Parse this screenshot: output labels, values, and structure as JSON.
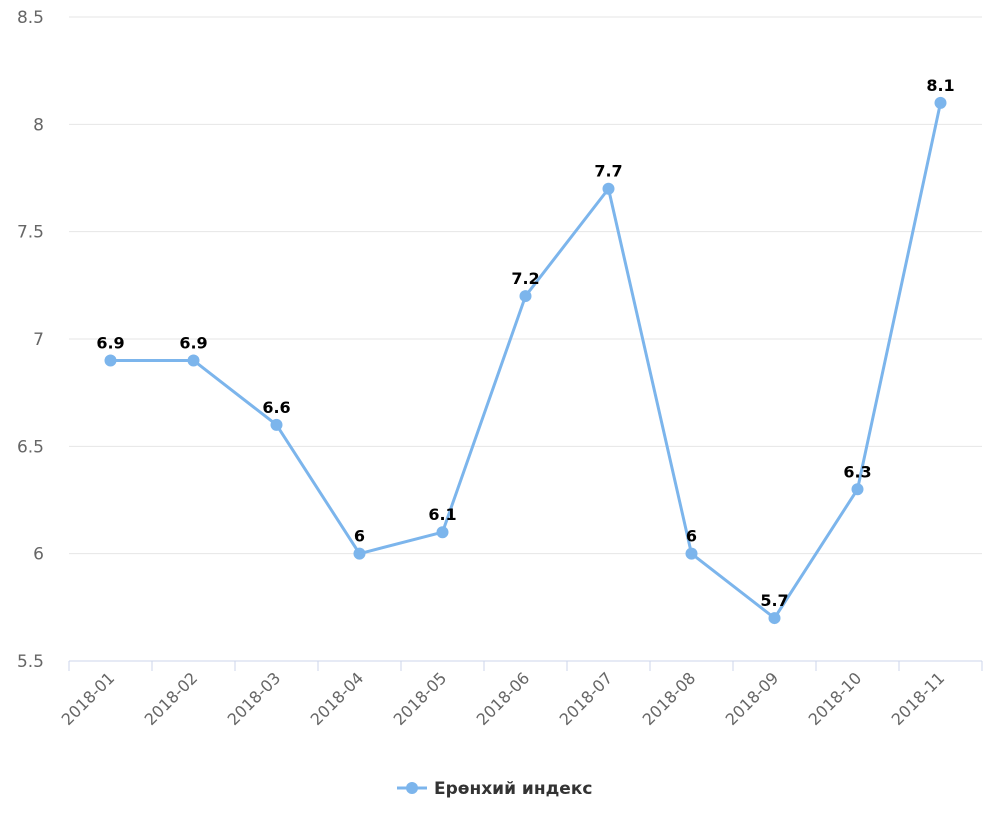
{
  "chart_data": {
    "type": "line",
    "title": "",
    "xlabel": "",
    "ylabel": "",
    "categories": [
      "2018-01",
      "2018-02",
      "2018-03",
      "2018-04",
      "2018-05",
      "2018-06",
      "2018-07",
      "2018-08",
      "2018-09",
      "2018-10",
      "2018-11"
    ],
    "series": [
      {
        "name": "Ерөнхий индекс",
        "values": [
          6.9,
          6.9,
          6.6,
          6,
          6.1,
          7.2,
          7.7,
          6,
          5.7,
          6.3,
          8.1
        ]
      }
    ],
    "data_labels": [
      "6.9",
      "6.9",
      "6.6",
      "6",
      "6.1",
      "7.2",
      "7.7",
      "6",
      "5.7",
      "6.3",
      "8.1"
    ],
    "ylim": [
      5.5,
      8.5
    ],
    "yticks": [
      5.5,
      6,
      6.5,
      7,
      7.5,
      8,
      8.5
    ],
    "ytick_labels": [
      "5.5",
      "6",
      "6.5",
      "7",
      "7.5",
      "8",
      "8.5"
    ],
    "grid": true,
    "legend_position": "bottom-center",
    "series_color": "#7cb5ec",
    "axis_color": "#ccd6eb"
  }
}
